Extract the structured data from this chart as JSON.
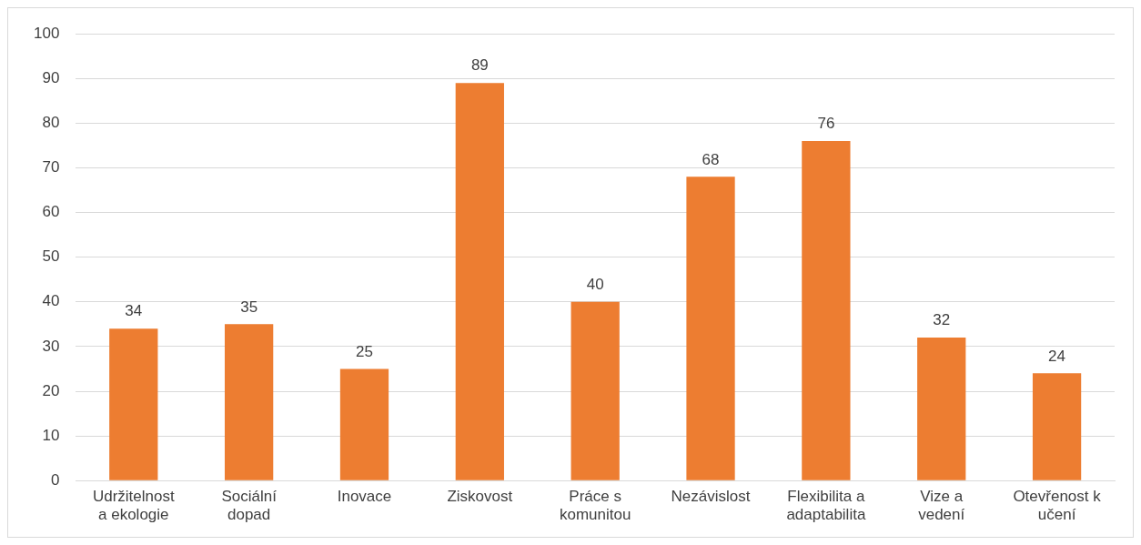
{
  "chart_data": {
    "type": "bar",
    "categories": [
      "Udržitelnost\na ekologie",
      "Sociální\ndopad",
      "Inovace",
      "Ziskovost",
      "Práce s\nkomunitou",
      "Nezávislost",
      "Flexibilita a\nadaptabilita",
      "Vize a\nvedení",
      "Otevřenost k\nučení"
    ],
    "values": [
      34,
      35,
      25,
      89,
      40,
      68,
      76,
      32,
      24
    ],
    "color": "#ed7d31",
    "ylim": [
      0,
      100
    ],
    "yticks": [
      0,
      10,
      20,
      30,
      40,
      50,
      60,
      70,
      80,
      90,
      100
    ],
    "grid": "y",
    "data_labels": true,
    "legend": false
  }
}
